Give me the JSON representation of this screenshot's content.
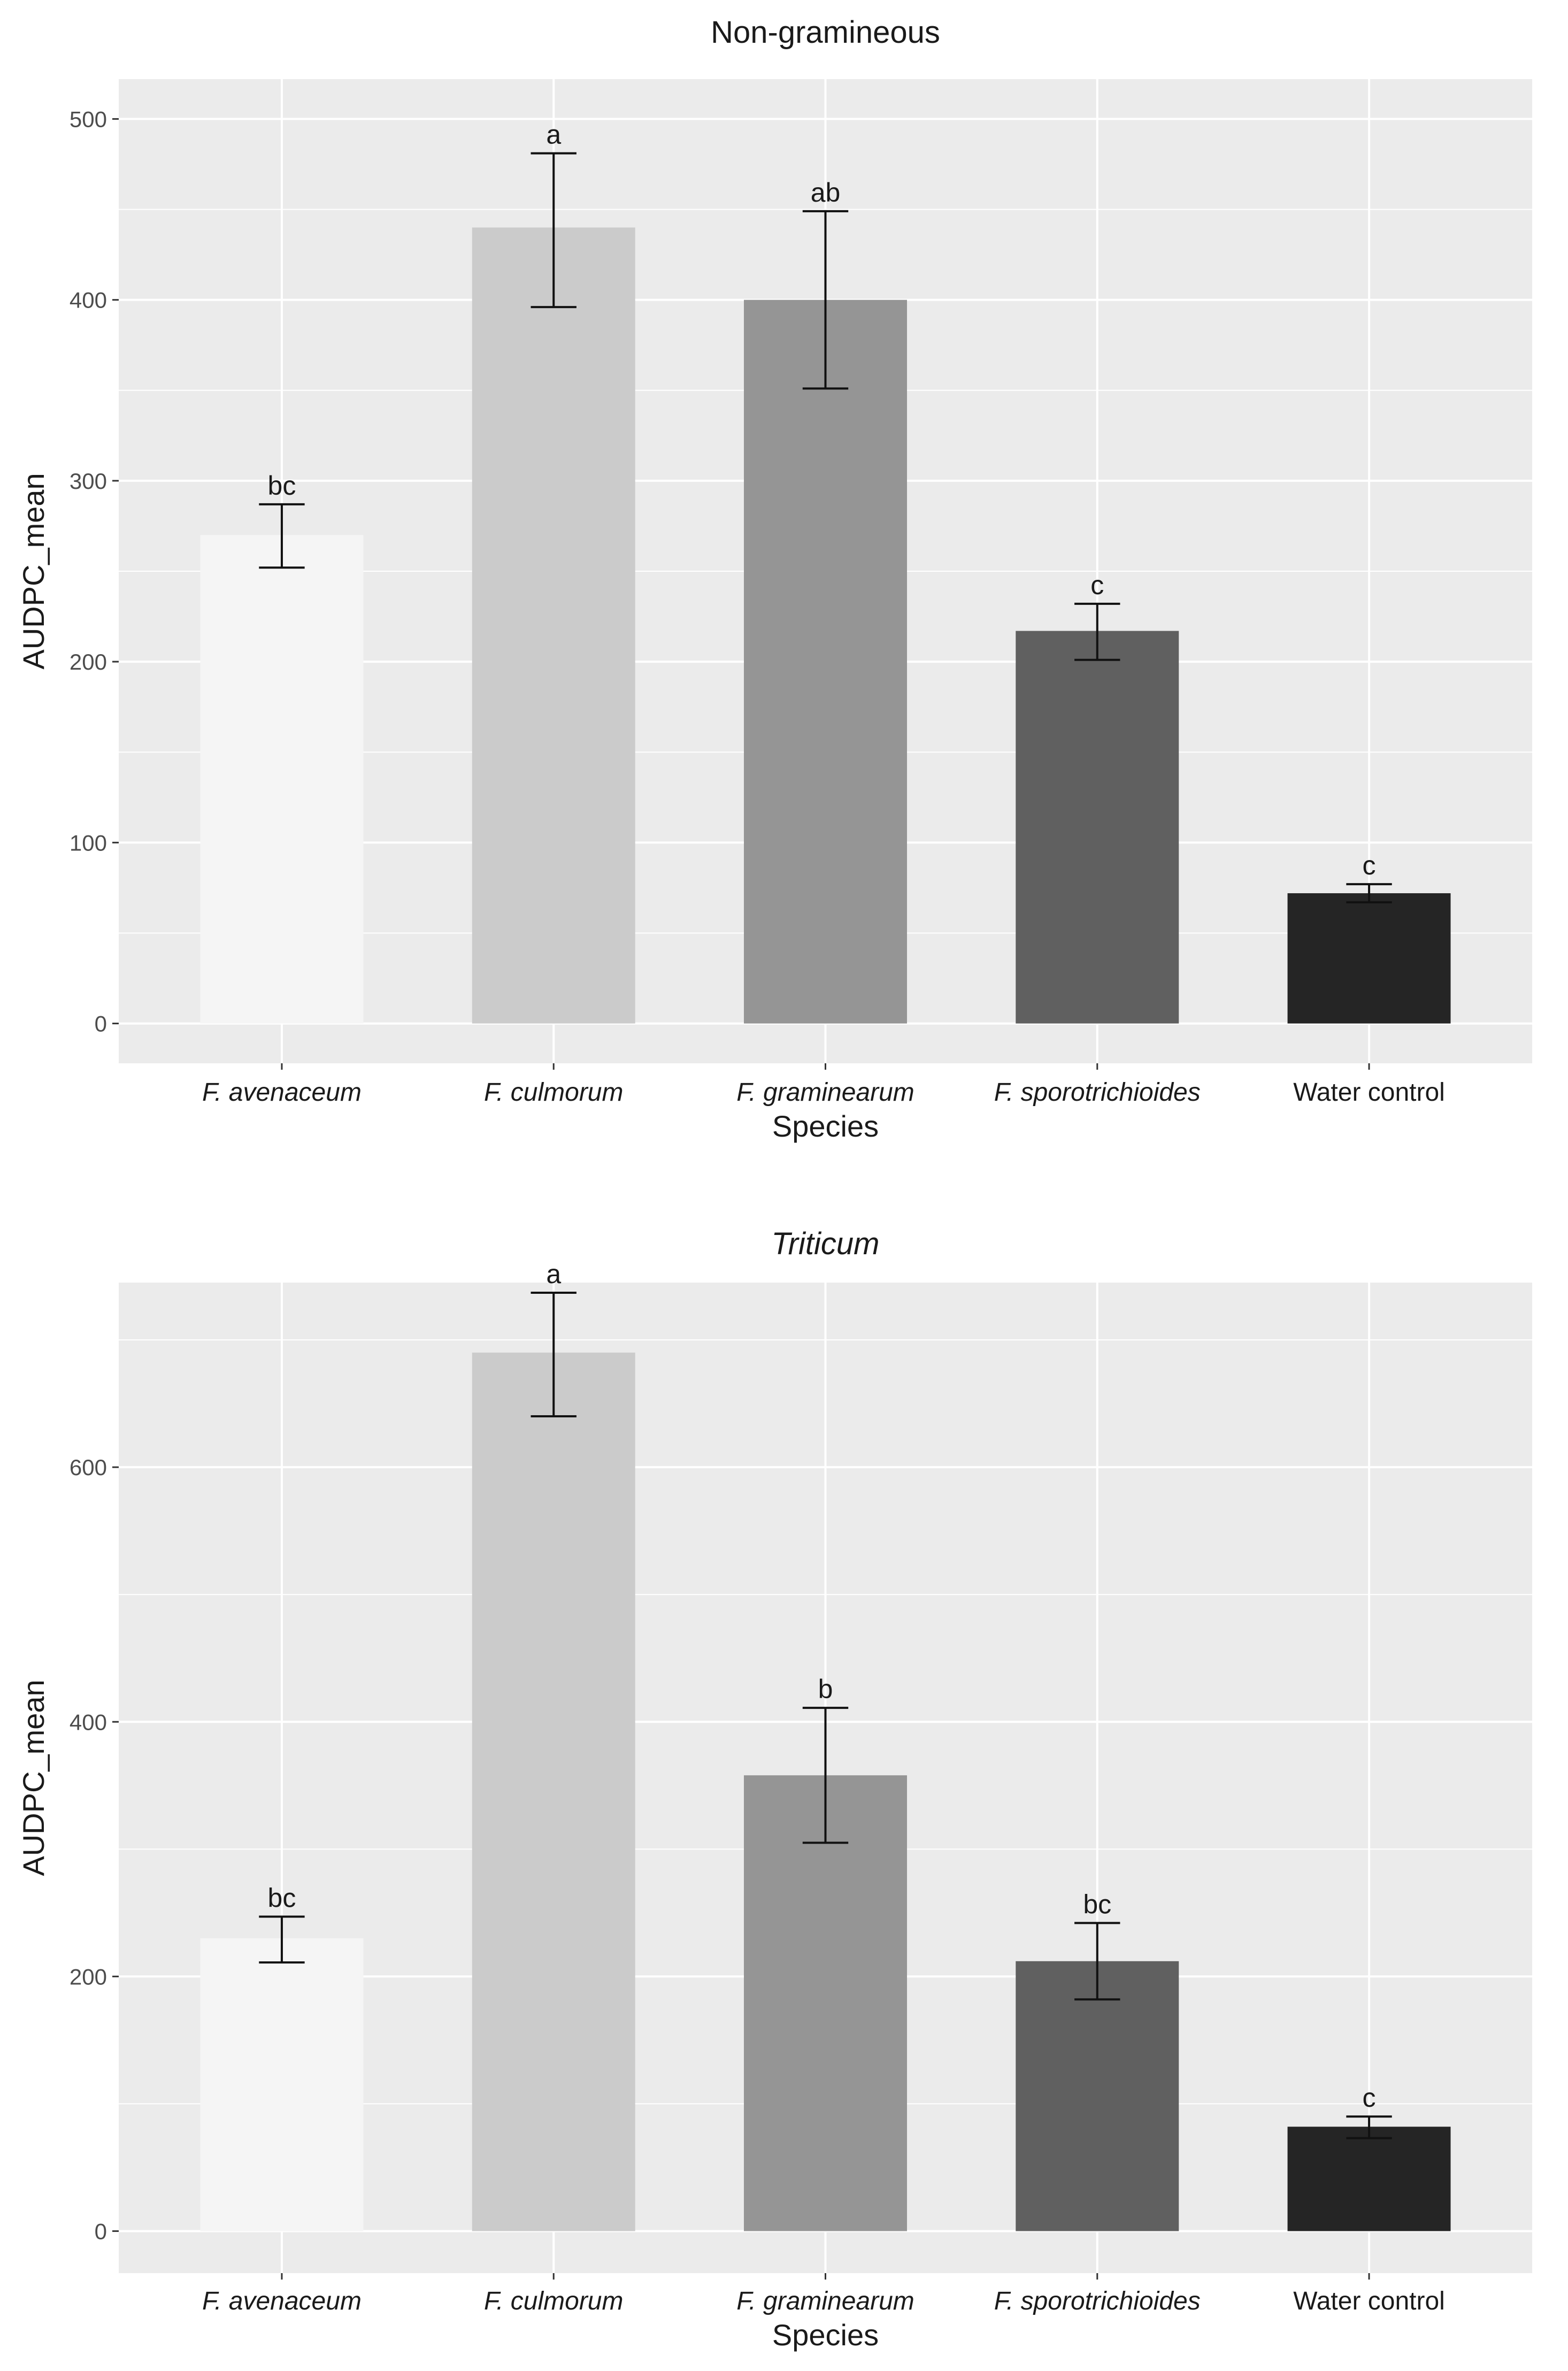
{
  "chart_data": [
    {
      "type": "bar",
      "title": "Non-gramineous",
      "title_italic": false,
      "xlabel": "Species",
      "ylabel": "AUDPC_mean",
      "ylim": [
        -22,
        522
      ],
      "yticks": [
        0,
        100,
        200,
        300,
        400,
        500
      ],
      "categories": [
        "F. avenaceum",
        "F. culmorum",
        "F. graminearum",
        "F. sporotrichioides",
        "Water control"
      ],
      "category_italic": [
        true,
        true,
        true,
        true,
        false
      ],
      "values": [
        270,
        440,
        400,
        217,
        72
      ],
      "error_low": [
        252,
        396,
        351,
        201,
        67
      ],
      "error_high": [
        287,
        481,
        449,
        232,
        77
      ],
      "significance": [
        "bc",
        "a",
        "ab",
        "c",
        "c"
      ],
      "bar_colors": [
        "#f5f5f5",
        "#cbcbcb",
        "#959595",
        "#606060",
        "#252525"
      ]
    },
    {
      "type": "bar",
      "title": "Triticum",
      "title_italic": true,
      "xlabel": "Species",
      "ylabel": "AUDPC_mean",
      "ylim": [
        -33,
        745
      ],
      "yticks": [
        0,
        200,
        400,
        600
      ],
      "categories": [
        "F. avenaceum",
        "F. culmorum",
        "F. graminearum",
        "F. sporotrichioides",
        "Water control"
      ],
      "category_italic": [
        true,
        true,
        true,
        true,
        false
      ],
      "values": [
        230,
        690,
        358,
        212,
        82
      ],
      "error_low": [
        211,
        640,
        305,
        182,
        73
      ],
      "error_high": [
        247,
        737,
        411,
        242,
        90
      ],
      "significance": [
        "bc",
        "a",
        "b",
        "bc",
        "c"
      ],
      "bar_colors": [
        "#f5f5f5",
        "#cbcbcb",
        "#959595",
        "#606060",
        "#252525"
      ]
    }
  ]
}
